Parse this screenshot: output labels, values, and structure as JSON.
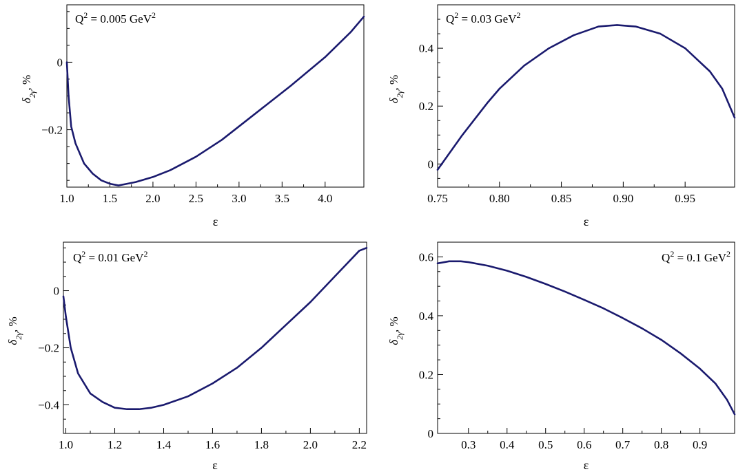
{
  "chart_data": [
    {
      "type": "line",
      "title": "Q² = 0.005 GeV²",
      "xlabel": "ε",
      "ylabel": "δ2γ, %",
      "xlim": [
        1.0,
        4.45
      ],
      "ylim": [
        -0.37,
        0.17
      ],
      "xticks": [
        1.0,
        1.5,
        2.0,
        2.5,
        3.0,
        3.5,
        4.0
      ],
      "xtick_labels": [
        "1.0",
        "1.5",
        "2.0",
        "2.5",
        "3.0",
        "3.5",
        "4.0"
      ],
      "yticks": [
        0,
        -0.2
      ],
      "ytick_labels": [
        "0",
        "−0.2"
      ],
      "grid": false,
      "series": [
        {
          "color": "#1a1a6e",
          "x": [
            1.0,
            1.02,
            1.05,
            1.1,
            1.2,
            1.3,
            1.4,
            1.5,
            1.6,
            1.7,
            1.8,
            2.0,
            2.2,
            2.5,
            2.8,
            3.0,
            3.3,
            3.6,
            4.0,
            4.3,
            4.45
          ],
          "y": [
            0.0,
            -0.1,
            -0.19,
            -0.24,
            -0.3,
            -0.33,
            -0.35,
            -0.36,
            -0.365,
            -0.36,
            -0.355,
            -0.34,
            -0.32,
            -0.28,
            -0.23,
            -0.19,
            -0.13,
            -0.07,
            0.015,
            0.09,
            0.135
          ]
        }
      ]
    },
    {
      "type": "line",
      "title": "Q² = 0.03 GeV²",
      "xlabel": "ε",
      "ylabel": "δ2γ, %",
      "xlim": [
        0.75,
        0.99
      ],
      "ylim": [
        -0.08,
        0.55
      ],
      "xticks": [
        0.75,
        0.8,
        0.85,
        0.9,
        0.95
      ],
      "xtick_labels": [
        "0.75",
        "0.80",
        "0.85",
        "0.90",
        "0.95"
      ],
      "yticks": [
        0,
        0.2,
        0.4
      ],
      "ytick_labels": [
        "0",
        "0.2",
        "0.4"
      ],
      "grid": false,
      "series": [
        {
          "color": "#1a1a6e",
          "x": [
            0.75,
            0.77,
            0.79,
            0.8,
            0.82,
            0.84,
            0.86,
            0.88,
            0.895,
            0.91,
            0.93,
            0.95,
            0.97,
            0.98,
            0.99
          ],
          "y": [
            -0.02,
            0.1,
            0.21,
            0.26,
            0.34,
            0.4,
            0.445,
            0.475,
            0.48,
            0.475,
            0.45,
            0.4,
            0.32,
            0.26,
            0.16
          ]
        }
      ]
    },
    {
      "type": "line",
      "title": "Q² = 0.01 GeV²",
      "xlabel": "ε",
      "ylabel": "δ2γ, %",
      "xlim": [
        0.99,
        2.23
      ],
      "ylim": [
        -0.5,
        0.17
      ],
      "xticks": [
        1.0,
        1.2,
        1.4,
        1.6,
        1.8,
        2.0,
        2.2
      ],
      "xtick_labels": [
        "1.0",
        "1.2",
        "1.4",
        "1.6",
        "1.8",
        "2.0",
        "2.2"
      ],
      "yticks": [
        0,
        -0.2,
        -0.4
      ],
      "ytick_labels": [
        "0",
        "−0.2",
        "−0.4"
      ],
      "grid": false,
      "series": [
        {
          "color": "#1a1a6e",
          "x": [
            0.99,
            1.0,
            1.02,
            1.05,
            1.1,
            1.15,
            1.2,
            1.25,
            1.3,
            1.35,
            1.4,
            1.5,
            1.6,
            1.7,
            1.8,
            1.9,
            2.0,
            2.1,
            2.2,
            2.23
          ],
          "y": [
            -0.02,
            -0.09,
            -0.2,
            -0.29,
            -0.36,
            -0.39,
            -0.41,
            -0.415,
            -0.415,
            -0.41,
            -0.4,
            -0.37,
            -0.325,
            -0.27,
            -0.2,
            -0.12,
            -0.04,
            0.05,
            0.14,
            0.15
          ]
        }
      ]
    },
    {
      "type": "line",
      "title": "Q² = 0.1 GeV²",
      "xlabel": "ε",
      "ylabel": "δ2γ, %",
      "xlim": [
        0.22,
        0.99
      ],
      "ylim": [
        0.0,
        0.65
      ],
      "xticks": [
        0.3,
        0.4,
        0.5,
        0.6,
        0.7,
        0.8,
        0.9
      ],
      "xtick_labels": [
        "0.3",
        "0.4",
        "0.5",
        "0.6",
        "0.7",
        "0.8",
        "0.9"
      ],
      "yticks": [
        0,
        0.2,
        0.4,
        0.6
      ],
      "ytick_labels": [
        "0",
        "0.2",
        "0.4",
        "0.6"
      ],
      "grid": false,
      "series": [
        {
          "color": "#1a1a6e",
          "x": [
            0.22,
            0.25,
            0.28,
            0.3,
            0.35,
            0.4,
            0.45,
            0.5,
            0.55,
            0.6,
            0.65,
            0.7,
            0.75,
            0.8,
            0.85,
            0.9,
            0.94,
            0.97,
            0.99
          ],
          "y": [
            0.578,
            0.585,
            0.585,
            0.582,
            0.57,
            0.553,
            0.532,
            0.508,
            0.482,
            0.454,
            0.425,
            0.392,
            0.357,
            0.318,
            0.272,
            0.22,
            0.17,
            0.115,
            0.065
          ]
        }
      ]
    }
  ]
}
